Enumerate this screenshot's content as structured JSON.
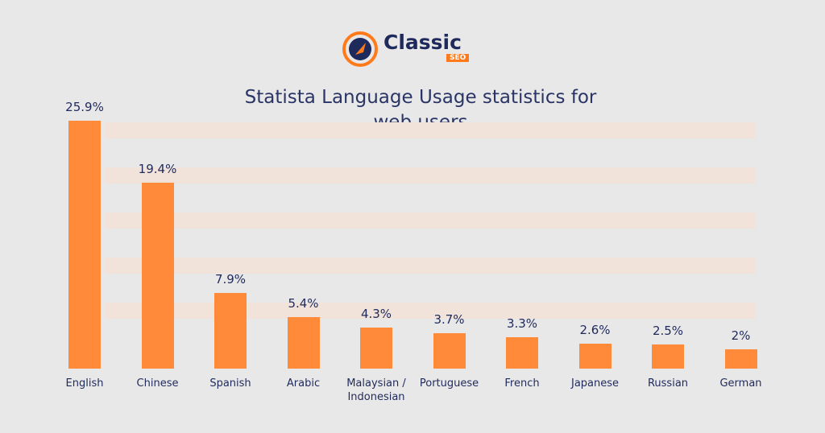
{
  "logo": {
    "name": "Classic",
    "tag": "SEO"
  },
  "chart_data": {
    "type": "bar",
    "title": "Statista Language Usage statistics for web users",
    "categories": [
      "English",
      "Chinese",
      "Spanish",
      "Arabic",
      "Malaysian / Indonesian",
      "Portuguese",
      "French",
      "Japanese",
      "Russian",
      "German"
    ],
    "values": [
      25.9,
      19.4,
      7.9,
      5.4,
      4.3,
      3.7,
      3.3,
      2.6,
      2.5,
      2
    ],
    "value_labels": [
      "25.9%",
      "19.4%",
      "7.9%",
      "5.4%",
      "4.3%",
      "3.7%",
      "3.3%",
      "2.6%",
      "2.5%",
      "2%"
    ],
    "color": "#ff8a3a"
  }
}
